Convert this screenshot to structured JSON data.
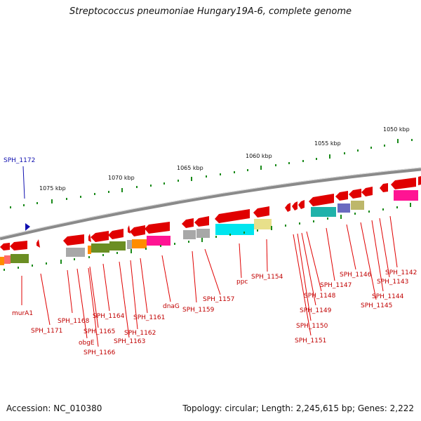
{
  "title": "Streptococcus pneumoniae Hungary19A-6, complete genome",
  "footer": {
    "accession": "Accession: NC_010380",
    "summary": "Topology: circular; Length: 2,245,615 bp; Genes: 2,222"
  },
  "scale_labels": [
    "1050 kbp",
    "1055 kbp",
    "1060 kbp",
    "1065 kbp",
    "1070 kbp",
    "1075 kbp"
  ],
  "selected_gene": "SPH_1172",
  "gene_labels": [
    "murA1",
    "SPH_1171",
    "SPH_1168",
    "obgE",
    "SPH_1165",
    "SPH_1166",
    "SPH_1164",
    "SPH_1163",
    "SPH_1162",
    "SPH_1161",
    "dnaG",
    "SPH_1159",
    "SPH_1157",
    "ppc",
    "SPH_1154",
    "SPH_1151",
    "SPH_1150",
    "SPH_1149",
    "SPH_1148",
    "SPH_1147",
    "SPH_1146",
    "SPH_1145",
    "SPH_1144",
    "SPH_1143",
    "SPH_1142"
  ],
  "colors": {
    "backbone": "#7a7a7a",
    "gene_arrow": "#e00000",
    "tick": "#1a8a1a",
    "label": "#c00000",
    "selected": "#1010b0",
    "cog_gray": "#a8a8a8",
    "cog_olive": "#6b8e23",
    "cog_orange": "#ff8c00",
    "cog_magenta": "#ff1493",
    "cog_cyan": "#00e5ee",
    "cog_khaki": "#e8e08a",
    "cog_teal": "#20b2aa",
    "cog_slate": "#6a6ac0"
  }
}
